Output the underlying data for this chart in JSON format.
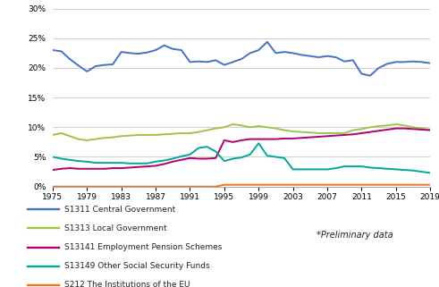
{
  "years": [
    1975,
    1976,
    1977,
    1978,
    1979,
    1980,
    1981,
    1982,
    1983,
    1984,
    1985,
    1986,
    1987,
    1988,
    1989,
    1990,
    1991,
    1992,
    1993,
    1994,
    1995,
    1996,
    1997,
    1998,
    1999,
    2000,
    2001,
    2002,
    2003,
    2004,
    2005,
    2006,
    2007,
    2008,
    2009,
    2010,
    2011,
    2012,
    2013,
    2014,
    2015,
    2016,
    2017,
    2018,
    2019
  ],
  "S1311": [
    23.0,
    22.8,
    21.5,
    20.4,
    19.4,
    20.3,
    20.5,
    20.6,
    22.7,
    22.5,
    22.4,
    22.6,
    23.0,
    23.8,
    23.2,
    23.0,
    21.0,
    21.1,
    21.0,
    21.3,
    20.5,
    21.0,
    21.5,
    22.5,
    23.0,
    24.4,
    22.5,
    22.7,
    22.5,
    22.2,
    22.0,
    21.8,
    22.0,
    21.8,
    21.1,
    21.3,
    19.0,
    18.7,
    20.0,
    20.7,
    21.0,
    21.0,
    21.1,
    21.0,
    20.8
  ],
  "S1313": [
    8.7,
    9.0,
    8.5,
    8.0,
    7.8,
    8.0,
    8.2,
    8.3,
    8.5,
    8.6,
    8.7,
    8.7,
    8.7,
    8.8,
    8.9,
    9.0,
    9.0,
    9.2,
    9.5,
    9.8,
    10.0,
    10.5,
    10.3,
    10.0,
    10.2,
    10.0,
    9.8,
    9.5,
    9.3,
    9.2,
    9.1,
    9.0,
    9.0,
    9.0,
    9.0,
    9.5,
    9.7,
    10.0,
    10.2,
    10.3,
    10.5,
    10.3,
    10.0,
    9.8,
    9.6
  ],
  "S13141": [
    2.8,
    3.0,
    3.1,
    3.0,
    3.0,
    3.0,
    3.0,
    3.1,
    3.1,
    3.2,
    3.3,
    3.4,
    3.5,
    3.8,
    4.2,
    4.5,
    4.8,
    4.7,
    4.7,
    4.8,
    7.8,
    7.5,
    7.8,
    8.0,
    8.0,
    8.0,
    8.0,
    8.1,
    8.1,
    8.2,
    8.3,
    8.4,
    8.5,
    8.6,
    8.7,
    8.8,
    9.0,
    9.2,
    9.4,
    9.6,
    9.8,
    9.8,
    9.7,
    9.6,
    9.5
  ],
  "S13149": [
    5.0,
    4.7,
    4.5,
    4.3,
    4.2,
    4.0,
    4.0,
    4.0,
    4.0,
    3.9,
    3.9,
    3.9,
    4.2,
    4.4,
    4.7,
    5.1,
    5.4,
    6.5,
    6.7,
    5.9,
    4.3,
    4.7,
    4.9,
    5.4,
    7.3,
    5.2,
    5.0,
    4.8,
    2.9,
    2.9,
    2.9,
    2.9,
    2.9,
    3.1,
    3.4,
    3.4,
    3.4,
    3.2,
    3.1,
    3.0,
    2.9,
    2.8,
    2.7,
    2.5,
    2.3
  ],
  "S212": [
    0.0,
    0.0,
    0.0,
    0.0,
    0.0,
    0.0,
    0.0,
    0.0,
    0.0,
    0.0,
    0.0,
    0.0,
    0.0,
    0.0,
    0.0,
    0.0,
    0.0,
    0.0,
    0.0,
    0.0,
    0.3,
    0.3,
    0.3,
    0.3,
    0.3,
    0.3,
    0.3,
    0.3,
    0.3,
    0.3,
    0.3,
    0.3,
    0.3,
    0.3,
    0.3,
    0.3,
    0.3,
    0.3,
    0.3,
    0.3,
    0.3,
    0.3,
    0.3,
    0.3,
    0.3
  ],
  "colors": {
    "S1311": "#4472c4",
    "S1313": "#9dc34a",
    "S13141": "#b0006e",
    "S13149": "#00a89c",
    "S212": "#e87722"
  },
  "labels": {
    "S1311": "S1311 Central Government",
    "S1313": "S1313 Local Government",
    "S13141": "S13141 Employment Pension Schemes",
    "S13149": "S13149 Other Social Security Funds",
    "S212": "S212 The Institutions of the EU"
  },
  "ylim": [
    0.0,
    0.3
  ],
  "yticks": [
    0.0,
    0.05,
    0.1,
    0.15,
    0.2,
    0.25,
    0.3
  ],
  "xticks": [
    1975,
    1979,
    1983,
    1987,
    1991,
    1995,
    1999,
    2003,
    2007,
    2011,
    2015,
    2019
  ],
  "note": "*Preliminary data",
  "background_color": "#ffffff",
  "grid_color": "#c8c8c8",
  "linewidth": 1.4
}
